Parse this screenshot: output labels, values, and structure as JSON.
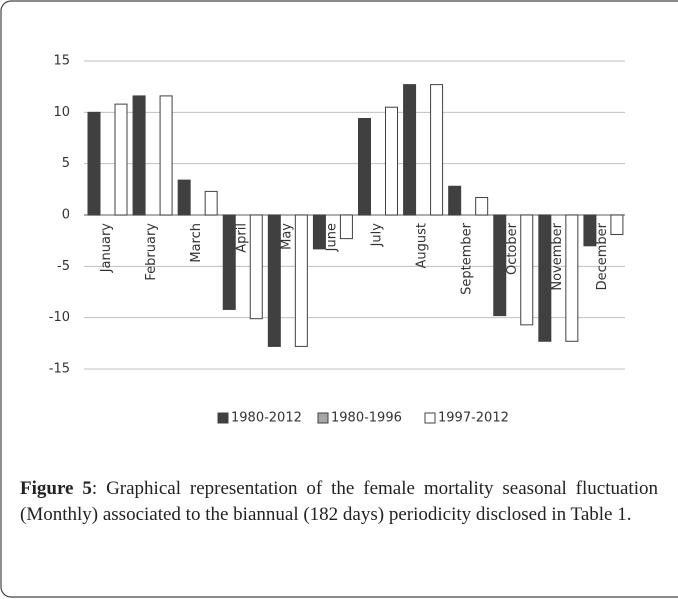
{
  "chart_data": {
    "type": "bar",
    "categories": [
      "January",
      "February",
      "March",
      "April",
      "May",
      "June",
      "July",
      "August",
      "September",
      "October",
      "November",
      "December"
    ],
    "series": [
      {
        "name": "1980-2012",
        "color": "#404040",
        "values": [
          10.0,
          11.6,
          3.4,
          -9.2,
          -12.8,
          -3.3,
          9.4,
          12.7,
          2.8,
          -9.8,
          -12.3,
          -3.0
        ]
      },
      {
        "name": "1980-1996",
        "color": "#a6a6a6",
        "values": [
          null,
          null,
          null,
          null,
          null,
          null,
          null,
          null,
          null,
          null,
          null,
          null
        ]
      },
      {
        "name": "1997-2012",
        "color": "#ffffff",
        "values": [
          10.8,
          11.6,
          2.3,
          -10.1,
          -12.8,
          -2.3,
          10.5,
          12.7,
          1.7,
          -10.7,
          -12.3,
          -1.9
        ]
      }
    ],
    "ylim": [
      -15,
      15
    ],
    "yticks": [
      -15,
      -10,
      -5,
      0,
      5,
      10,
      15
    ],
    "grid": true,
    "legend": "bottom"
  },
  "caption": {
    "label": "Figure 5",
    "text": ": Graphical representation of the female mortality seasonal fluctuation (Monthly) associated to the biannual (182 days) periodicity disclosed in Table 1."
  }
}
